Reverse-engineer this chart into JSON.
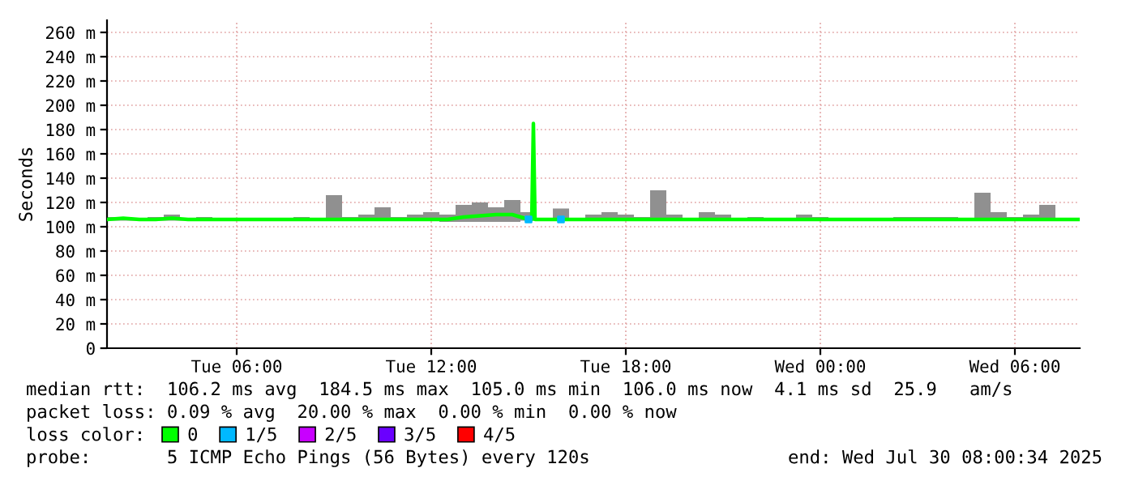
{
  "chart_data": {
    "type": "line",
    "ylabel": "Seconds",
    "legend_title": "loss color:",
    "legend": "bottom",
    "grid": true,
    "line_style": "solid",
    "marker": "none",
    "xlim": [
      "2025-07-29T02:00",
      "2025-07-30T08:00"
    ],
    "xticks": [
      {
        "value": "2025-07-29T06:00",
        "label": "Tue 06:00"
      },
      {
        "value": "2025-07-29T12:00",
        "label": "Tue 12:00"
      },
      {
        "value": "2025-07-29T18:00",
        "label": "Tue 18:00"
      },
      {
        "value": "2025-07-30T00:00",
        "label": "Wed 00:00"
      },
      {
        "value": "2025-07-30T06:00",
        "label": "Wed 06:00"
      }
    ],
    "ylim": [
      0,
      270
    ],
    "yticks": [
      0,
      {
        "value": 20,
        "label": "20 m"
      },
      {
        "value": 40,
        "label": "40 m"
      },
      {
        "value": 60,
        "label": "60 m"
      },
      {
        "value": 80,
        "label": "80 m"
      },
      {
        "value": 100,
        "label": "100 m"
      },
      {
        "value": 120,
        "label": "120 m"
      },
      {
        "value": 140,
        "label": "140 m"
      },
      {
        "value": 160,
        "label": "160 m"
      },
      {
        "value": 180,
        "label": "180 m"
      },
      {
        "value": 200,
        "label": "200 m"
      },
      {
        "value": 220,
        "label": "220 m"
      },
      {
        "value": 240,
        "label": "240 m"
      },
      {
        "value": 260,
        "label": "260 m"
      }
    ],
    "series": [
      {
        "name": "0",
        "color": "#00ff00",
        "x": [
          "2025-07-29T02:00",
          "2025-07-29T02:30",
          "2025-07-29T03:00",
          "2025-07-29T03:30",
          "2025-07-29T04:00",
          "2025-07-29T04:30",
          "2025-07-29T05:00",
          "2025-07-29T05:30",
          "2025-07-29T06:00",
          "2025-07-29T06:30",
          "2025-07-29T07:00",
          "2025-07-29T07:30",
          "2025-07-29T08:00",
          "2025-07-29T08:30",
          "2025-07-29T09:00",
          "2025-07-29T09:30",
          "2025-07-29T10:00",
          "2025-07-29T10:30",
          "2025-07-29T11:00",
          "2025-07-29T11:30",
          "2025-07-29T12:00",
          "2025-07-29T12:30",
          "2025-07-29T13:00",
          "2025-07-29T13:30",
          "2025-07-29T14:00",
          "2025-07-29T14:30",
          "2025-07-29T15:00",
          "2025-07-29T15:06",
          "2025-07-29T15:09",
          "2025-07-29T15:12",
          "2025-07-29T15:30",
          "2025-07-29T16:00",
          "2025-07-29T16:30",
          "2025-07-29T17:00",
          "2025-07-29T17:30",
          "2025-07-29T18:00",
          "2025-07-29T18:30",
          "2025-07-29T19:00",
          "2025-07-29T19:30",
          "2025-07-29T20:00",
          "2025-07-29T20:30",
          "2025-07-29T21:00",
          "2025-07-29T21:30",
          "2025-07-29T22:00",
          "2025-07-29T22:30",
          "2025-07-29T23:00",
          "2025-07-29T23:30",
          "2025-07-30T00:00",
          "2025-07-30T00:30",
          "2025-07-30T01:00",
          "2025-07-30T01:30",
          "2025-07-30T02:00",
          "2025-07-30T02:30",
          "2025-07-30T03:00",
          "2025-07-30T03:30",
          "2025-07-30T04:00",
          "2025-07-30T04:30",
          "2025-07-30T05:00",
          "2025-07-30T05:30",
          "2025-07-30T06:00",
          "2025-07-30T06:30",
          "2025-07-30T07:00",
          "2025-07-30T07:30",
          "2025-07-30T08:00"
        ],
        "values": [
          106,
          107,
          106,
          106,
          107,
          106,
          106,
          106,
          106,
          106,
          106,
          106,
          106,
          106,
          106,
          106,
          106,
          106,
          106,
          106,
          106,
          106,
          108,
          109,
          110,
          110,
          106,
          106,
          185,
          106,
          106,
          106,
          106,
          106,
          106,
          106,
          106,
          106,
          106,
          106,
          106,
          106,
          106,
          106,
          106,
          106,
          106,
          106,
          106,
          106,
          106,
          106,
          106,
          106,
          106,
          106,
          106,
          106,
          106,
          106,
          106,
          106,
          106,
          106
        ],
        "lower": [
          105,
          105,
          105,
          105,
          105,
          105,
          105,
          105,
          105,
          105,
          105,
          105,
          105,
          105,
          105,
          105,
          105,
          105,
          105,
          105,
          105,
          104,
          104,
          104,
          104,
          104,
          105,
          105,
          105,
          105,
          105,
          105,
          105,
          105,
          105,
          105,
          105,
          105,
          105,
          105,
          105,
          105,
          105,
          105,
          105,
          105,
          105,
          105,
          105,
          105,
          105,
          105,
          105,
          105,
          105,
          105,
          105,
          105,
          105,
          105,
          105,
          105,
          105,
          105
        ],
        "upper": [
          108,
          108,
          107,
          108,
          110,
          107,
          108,
          107,
          107,
          107,
          107,
          107,
          108,
          107,
          126,
          108,
          110,
          116,
          108,
          110,
          112,
          110,
          118,
          120,
          116,
          122,
          112,
          112,
          186,
          107,
          107,
          115,
          107,
          110,
          112,
          110,
          108,
          130,
          110,
          107,
          112,
          110,
          107,
          108,
          107,
          107,
          110,
          108,
          107,
          107,
          107,
          107,
          108,
          108,
          108,
          108,
          107,
          128,
          112,
          108,
          110,
          118,
          107,
          107
        ]
      },
      {
        "name": "1/5",
        "type": "scatter",
        "color": "#00b8ff",
        "marker": "square",
        "x": [
          "2025-07-29T15:00",
          "2025-07-29T16:00"
        ],
        "values": [
          106,
          106
        ]
      },
      {
        "name": "2/5",
        "type": "scatter",
        "color": "#c800ff",
        "marker": "square"
      },
      {
        "name": "3/5",
        "type": "scatter",
        "color": "#6a00ff",
        "marker": "square"
      },
      {
        "name": "4/5",
        "type": "scatter",
        "color": "#ff0000",
        "marker": "square"
      }
    ],
    "annotations": [
      "median rtt:  106.2 ms avg  184.5 ms max  105.0 ms min  106.0 ms now  4.1 ms sd  25.9   am/s",
      "packet loss: 0.09 % avg  20.00 % max  0.00 % min  0.00 % now",
      "probe:       5 ICMP Echo Pings (56 Bytes) every 120s",
      "end: Wed Jul 30 08:00:34 2025"
    ]
  }
}
